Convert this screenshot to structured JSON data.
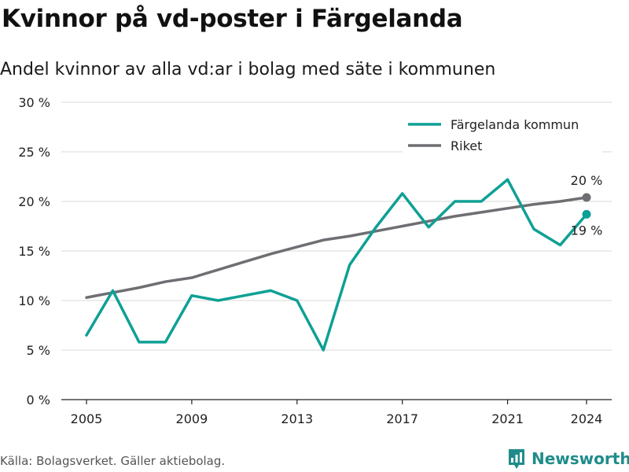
{
  "title": "Kvinnor på vd-poster i Färgelanda",
  "subtitle": "Andel kvinnor av alla vd:ar i bolag med säte i kommunen",
  "source": "Källa: Bolagsverket. Gäller aktiebolag.",
  "brand": "Newsworthy",
  "colors": {
    "teal": "#0fa095",
    "gray": "#6e6e73",
    "grid": "#d9d9d9",
    "brand": "#1f8c8a"
  },
  "chart_data": {
    "type": "line",
    "x_ticks": [
      "2005",
      "2009",
      "2013",
      "2017",
      "2021",
      "2024"
    ],
    "y_ticks": [
      "0 %",
      "5 %",
      "10 %",
      "15 %",
      "20 %",
      "25 %",
      "30 %"
    ],
    "xlim": [
      2005,
      2024
    ],
    "ylim": [
      0,
      30
    ],
    "grid": true,
    "legend_position": "top-right",
    "series": [
      {
        "name": "Färgelanda kommun",
        "color": "#0fa095",
        "x": [
          2005,
          2006,
          2007,
          2008,
          2009,
          2010,
          2011,
          2012,
          2013,
          2014,
          2015,
          2016,
          2017,
          2018,
          2019,
          2020,
          2021,
          2022,
          2023,
          2024
        ],
        "y": [
          6.5,
          11.0,
          5.8,
          5.8,
          10.5,
          10.0,
          10.5,
          11.0,
          10.0,
          5.0,
          13.6,
          17.4,
          20.8,
          17.4,
          20.0,
          20.0,
          22.2,
          17.2,
          15.6,
          18.7
        ],
        "end_label": "19 %"
      },
      {
        "name": "Riket",
        "color": "#6e6e73",
        "x": [
          2005,
          2006,
          2007,
          2008,
          2009,
          2010,
          2011,
          2012,
          2013,
          2014,
          2015,
          2016,
          2017,
          2018,
          2019,
          2020,
          2021,
          2022,
          2023,
          2024
        ],
        "y": [
          10.3,
          10.8,
          11.3,
          11.9,
          12.3,
          13.1,
          13.9,
          14.7,
          15.4,
          16.1,
          16.5,
          17.0,
          17.5,
          18.0,
          18.5,
          18.9,
          19.3,
          19.7,
          20.0,
          20.4
        ],
        "end_label": "20 %"
      }
    ]
  }
}
